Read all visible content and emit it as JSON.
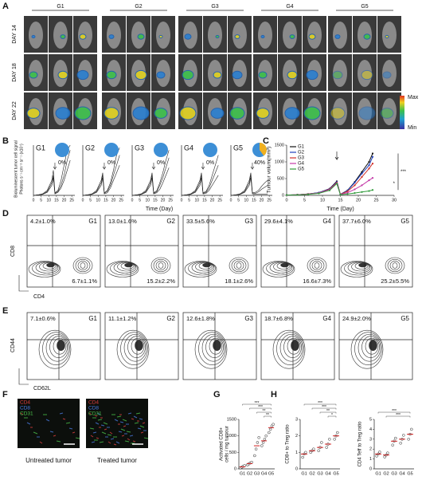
{
  "panel_labels": [
    "A",
    "B",
    "C",
    "D",
    "E",
    "F",
    "G",
    "H"
  ],
  "panel_a": {
    "groups": [
      "G1",
      "G2",
      "G3",
      "G4",
      "G5"
    ],
    "rows": [
      "DAY 14",
      "DAY 18",
      "DAY 22"
    ],
    "colorbar": {
      "max": "Max",
      "min": "Min"
    }
  },
  "panel_b": {
    "type": "line",
    "y_label": "Bioluminescent tumor cell signal",
    "y_label_2": "Photons s⁻¹ cm⁻² sr⁻¹ (x10⁷)",
    "x_label": "Time (Day)",
    "xlim": [
      0,
      27
    ],
    "xticks": [
      0,
      5,
      10,
      15,
      20,
      25
    ],
    "ylim": [
      0,
      10
    ],
    "x": [
      0,
      3,
      6,
      9,
      12,
      13,
      14,
      16,
      18,
      20,
      22,
      24
    ],
    "groups": [
      {
        "name": "G1",
        "response": {
          "value": 0,
          "label": "0%"
        },
        "curves": [
          [
            0,
            0.1,
            0.3,
            1,
            3,
            5,
            0.5,
            1,
            3,
            6,
            9,
            10
          ],
          [
            0,
            0.1,
            0.2,
            0.8,
            2.5,
            4,
            0.4,
            0.8,
            2,
            4,
            7,
            9
          ],
          [
            0,
            0.1,
            0.2,
            0.6,
            2,
            3.5,
            0.3,
            0.6,
            1.5,
            3,
            5,
            7
          ]
        ]
      },
      {
        "name": "G2",
        "response": {
          "value": 0,
          "label": "0%"
        },
        "curves": [
          [
            0,
            0.1,
            0.3,
            1,
            3,
            4.5,
            0.5,
            1,
            2.5,
            5,
            8,
            9.5
          ],
          [
            0,
            0.1,
            0.2,
            0.8,
            2.5,
            4,
            0.4,
            0.8,
            2,
            4,
            6,
            8
          ],
          [
            0,
            0.1,
            0.2,
            0.6,
            2,
            3.5,
            0.3,
            0.5,
            1.5,
            3,
            4.5,
            6
          ]
        ]
      },
      {
        "name": "G3",
        "response": {
          "value": 0,
          "label": "0%"
        },
        "curves": [
          [
            0,
            0.1,
            0.3,
            1,
            3,
            4.5,
            0.5,
            0.9,
            2.5,
            4.5,
            7,
            9
          ],
          [
            0,
            0.1,
            0.2,
            0.8,
            2.5,
            4,
            0.4,
            0.7,
            2,
            3.5,
            5.5,
            7.5
          ],
          [
            0,
            0.1,
            0.2,
            0.6,
            2,
            3.5,
            0.3,
            0.5,
            1.2,
            2.5,
            4,
            5.5
          ]
        ]
      },
      {
        "name": "G4",
        "response": {
          "value": 0,
          "label": "0%"
        },
        "curves": [
          [
            0,
            0.1,
            0.3,
            1,
            3,
            4.5,
            0.5,
            0.8,
            2,
            4,
            6,
            8
          ],
          [
            0,
            0.1,
            0.2,
            0.8,
            2.5,
            4,
            0.4,
            0.6,
            1.5,
            3,
            4.5,
            6
          ],
          [
            0,
            0.1,
            0.2,
            0.6,
            2,
            3.5,
            0.3,
            0.4,
            1,
            2,
            3,
            4
          ]
        ]
      },
      {
        "name": "G5",
        "response": {
          "value": 40,
          "label": "40%"
        },
        "curves": [
          [
            0,
            0.1,
            0.3,
            1,
            3,
            4.5,
            0.5,
            0.6,
            1,
            1.8,
            2.5,
            3
          ],
          [
            0,
            0.1,
            0.2,
            0.8,
            2.5,
            4,
            0.4,
            0.4,
            0.7,
            1.2,
            1.6,
            2
          ],
          [
            0,
            0.1,
            0.2,
            0.6,
            2,
            3.5,
            0.3,
            0.2,
            0.2,
            0.2,
            0.2,
            0.2
          ]
        ]
      }
    ]
  },
  "panel_c": {
    "type": "line",
    "y_label": "Tumour volum(mm³)",
    "x_label": "Time (Day)",
    "xlim": [
      0,
      30
    ],
    "xticks": [
      0,
      5,
      10,
      15,
      20,
      25,
      30
    ],
    "ylim": [
      0,
      1500
    ],
    "yticks": [
      0,
      500,
      1000,
      1500
    ],
    "x": [
      0,
      3,
      6,
      9,
      12,
      14,
      15,
      17,
      19,
      21,
      23,
      24
    ],
    "series": [
      {
        "name": "G1",
        "color": "#111111",
        "values": [
          10,
          20,
          40,
          80,
          200,
          420,
          30,
          150,
          400,
          700,
          1000,
          1250
        ]
      },
      {
        "name": "G2",
        "color": "#1f3fbf",
        "values": [
          10,
          20,
          40,
          80,
          190,
          400,
          30,
          140,
          380,
          650,
          900,
          1150
        ]
      },
      {
        "name": "G3",
        "color": "#d0302a",
        "values": [
          10,
          20,
          40,
          70,
          180,
          380,
          30,
          120,
          300,
          550,
          800,
          950
        ]
      },
      {
        "name": "G4",
        "color": "#c43aa8",
        "values": [
          10,
          20,
          35,
          70,
          170,
          360,
          30,
          80,
          180,
          300,
          450,
          520
        ]
      },
      {
        "name": "G5",
        "color": "#2f9a3a",
        "values": [
          10,
          15,
          30,
          60,
          150,
          350,
          20,
          40,
          70,
          100,
          130,
          160
        ]
      }
    ],
    "annotations": [
      "***",
      "*"
    ]
  },
  "panel_d": {
    "x_label": "CD4",
    "y_label": "CD8",
    "plots": [
      {
        "group": "G1",
        "upper_left": "4.2±1.0%",
        "lower_right": "6.7±1.1%"
      },
      {
        "group": "G2",
        "upper_left": "13.0±1.6%",
        "lower_right": "15.2±2.2%"
      },
      {
        "group": "G3",
        "upper_left": "33.5±5.6%",
        "lower_right": "18.1±2.6%"
      },
      {
        "group": "G4",
        "upper_left": "29.6±4.1%",
        "lower_right": "16.6±7.3%"
      },
      {
        "group": "G5",
        "upper_left": "37.7±6.0%",
        "lower_right": "25.2±5.5%"
      }
    ]
  },
  "panel_e": {
    "x_label": "CD62L",
    "y_label": "CD44",
    "plots": [
      {
        "group": "G1",
        "upper_left": "7.1±0.6%"
      },
      {
        "group": "G2",
        "upper_left": "11.1±1.2%"
      },
      {
        "group": "G3",
        "upper_left": "12.6±1.8%"
      },
      {
        "group": "G4",
        "upper_left": "18.7±6.8%"
      },
      {
        "group": "G5",
        "upper_left": "24.9±2.0%"
      }
    ]
  },
  "panel_f": {
    "images": [
      {
        "caption": "Untreated tumor",
        "stains": [
          "CD4",
          "CD8",
          "CD31"
        ]
      },
      {
        "caption": "Treated tumor",
        "stains": [
          "CD4",
          "CD8",
          "CD31"
        ]
      }
    ]
  },
  "panel_g": {
    "type": "dot",
    "y_label": "Activated CD8+",
    "y_label_2": "cells / mg tumour",
    "categories": [
      "G1",
      "G2",
      "G3",
      "G4",
      "G5"
    ],
    "ylim": [
      0,
      1500
    ],
    "yticks": [
      0,
      500,
      1000,
      1500
    ],
    "points": [
      [
        30,
        50,
        80,
        100
      ],
      [
        120,
        150,
        180,
        200
      ],
      [
        400,
        600,
        800,
        950
      ],
      [
        700,
        800,
        900,
        1000
      ],
      [
        1100,
        1200,
        1300,
        1350
      ]
    ],
    "means": [
      60,
      160,
      700,
      850,
      1250
    ],
    "significance": [
      "***",
      "***",
      "**",
      "**"
    ]
  },
  "panel_h": [
    {
      "type": "dot",
      "y_label": "CD8+ to Treg ratio",
      "categories": [
        "G1",
        "G2",
        "G3",
        "G4",
        "G5"
      ],
      "ylim": [
        0,
        3
      ],
      "yticks": [
        0,
        1,
        2,
        3
      ],
      "points": [
        [
          0.7,
          0.9,
          1.0
        ],
        [
          1.0,
          1.1,
          1.2
        ],
        [
          1.1,
          1.3,
          1.6
        ],
        [
          1.3,
          1.5,
          1.8
        ],
        [
          1.8,
          2.0,
          2.2
        ]
      ],
      "means": [
        0.9,
        1.1,
        1.3,
        1.5,
        2.0
      ],
      "significance": [
        "***",
        "***",
        "**",
        "*"
      ]
    },
    {
      "type": "dot",
      "y_label": "CD4 Teff to Treg ratio",
      "categories": [
        "G1",
        "G2",
        "G3",
        "G4",
        "G5"
      ],
      "ylim": [
        0,
        5
      ],
      "yticks": [
        0,
        1,
        2,
        3,
        4,
        5
      ],
      "points": [
        [
          1.3,
          1.5,
          1.7
        ],
        [
          1.2,
          1.4,
          1.6
        ],
        [
          2.4,
          2.8,
          3.1
        ],
        [
          2.6,
          3.0,
          3.4
        ],
        [
          3.0,
          3.5,
          4.0
        ]
      ],
      "means": [
        1.5,
        1.4,
        2.8,
        3.0,
        3.5
      ],
      "significance": [
        "***",
        "***"
      ]
    }
  ]
}
